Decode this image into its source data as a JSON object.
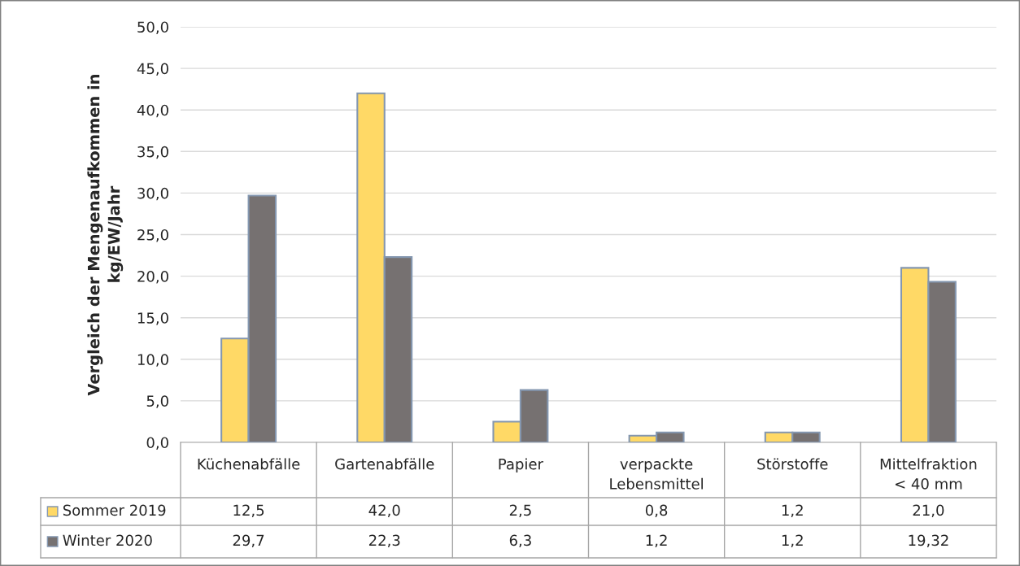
{
  "chart_data": {
    "type": "bar",
    "ylabel": "Vergleich der Mengenaufkommen in\nkg/EW/Jahr",
    "categories": [
      "Küchenabfälle",
      "Gartenabfälle",
      "Papier",
      "verpackte\nLebensmittel",
      "Störstoffe",
      "Mittelfraktion\n< 40 mm"
    ],
    "series": [
      {
        "name": "Sommer 2019",
        "color": "#ffd966",
        "values": [
          12.5,
          42.0,
          2.5,
          0.8,
          1.2,
          21.0
        ],
        "value_labels": [
          "12,5",
          "42,0",
          "2,5",
          "0,8",
          "1,2",
          "21,0"
        ]
      },
      {
        "name": "Winter 2020",
        "color": "#767171",
        "values": [
          29.7,
          22.3,
          6.3,
          1.2,
          1.2,
          19.32
        ],
        "value_labels": [
          "29,7",
          "22,3",
          "6,3",
          "1,2",
          "1,2",
          "19,32"
        ]
      }
    ],
    "ylim": [
      0,
      50
    ],
    "yticks": [
      {
        "value": 0,
        "label": "0,0"
      },
      {
        "value": 5,
        "label": "5,0"
      },
      {
        "value": 10,
        "label": "10,0"
      },
      {
        "value": 15,
        "label": "15,0"
      },
      {
        "value": 20,
        "label": "20,0"
      },
      {
        "value": 25,
        "label": "25,0"
      },
      {
        "value": 30,
        "label": "30,0"
      },
      {
        "value": 35,
        "label": "35,0"
      },
      {
        "value": 40,
        "label": "40,0"
      },
      {
        "value": 45,
        "label": "45,0"
      },
      {
        "value": 50,
        "label": "50,0"
      }
    ],
    "grid": "y",
    "legend": "bottom"
  }
}
